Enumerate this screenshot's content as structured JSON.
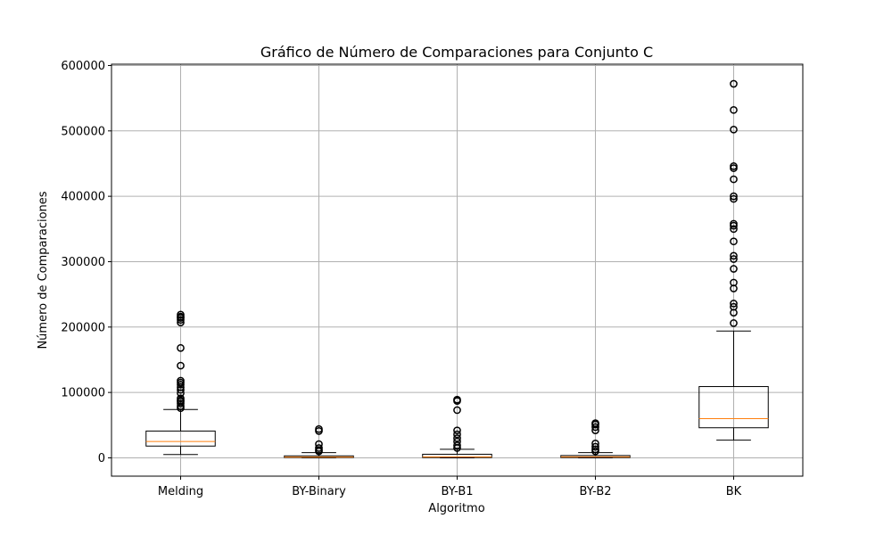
{
  "chart_data": {
    "type": "box",
    "title": "Gráfico de Número de Comparaciones para Conjunto C",
    "xlabel": "Algoritmo",
    "ylabel": "Número de Comparaciones",
    "ylim": [
      -28000,
      602000
    ],
    "yticks": [
      0,
      100000,
      200000,
      300000,
      400000,
      500000,
      600000
    ],
    "ytick_labels": [
      "0",
      "100000",
      "200000",
      "300000",
      "400000",
      "500000",
      "600000"
    ],
    "grid": true,
    "categories": [
      "Melding",
      "BY-Binary",
      "BY-B1",
      "BY-B2",
      "BK"
    ],
    "colors": {
      "box": "#000000",
      "median": "#ff7f0e",
      "grid": "#b0b0b0"
    },
    "boxes": [
      {
        "label": "Melding",
        "whisker_low": 5000,
        "q1": 18000,
        "median": 25000,
        "q3": 41000,
        "whisker_high": 74000,
        "outliers": [
          76000,
          79000,
          83000,
          86000,
          88000,
          91000,
          99000,
          104000,
          108000,
          112000,
          115000,
          118000,
          141000,
          168000,
          207000,
          211000,
          214000,
          216000,
          219000
        ]
      },
      {
        "label": "BY-Binary",
        "whisker_low": 0,
        "q1": 500,
        "median": 1200,
        "q3": 3000,
        "whisker_high": 8000,
        "outliers": [
          10000,
          12000,
          15000,
          21000,
          41000,
          44000
        ]
      },
      {
        "label": "BY-B1",
        "whisker_low": 0,
        "q1": 500,
        "median": 1500,
        "q3": 5500,
        "whisker_high": 13000,
        "outliers": [
          15000,
          19000,
          25000,
          30000,
          36000,
          42000,
          73000,
          87000,
          89000
        ]
      },
      {
        "label": "BY-B2",
        "whisker_low": 0,
        "q1": 500,
        "median": 1500,
        "q3": 3500,
        "whisker_high": 8000,
        "outliers": [
          10000,
          13000,
          17000,
          22000,
          42000,
          47000,
          51000,
          53000
        ]
      },
      {
        "label": "BK",
        "whisker_low": 27000,
        "q1": 46000,
        "median": 60000,
        "q3": 109000,
        "whisker_high": 194000,
        "outliers": [
          206000,
          222000,
          231000,
          236000,
          259000,
          268000,
          289000,
          304000,
          309000,
          331000,
          350000,
          355000,
          358000,
          396000,
          400000,
          426000,
          443000,
          446000,
          502000,
          532000,
          572000
        ]
      }
    ]
  }
}
